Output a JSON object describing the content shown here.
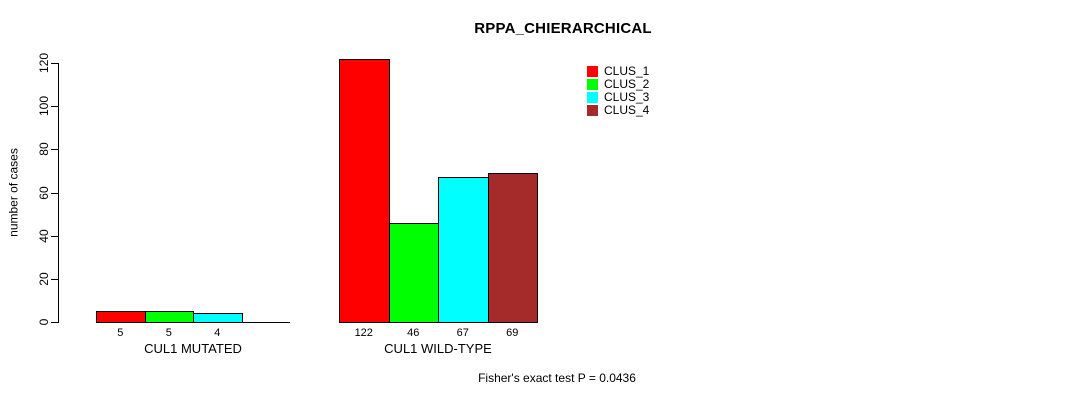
{
  "chart_data": {
    "type": "bar",
    "title": "RPPA_CHIERARCHICAL",
    "ylabel": "number of cases",
    "xlabel": "",
    "ylim": [
      0,
      120
    ],
    "yticks": [
      0,
      20,
      40,
      60,
      80,
      100,
      120
    ],
    "grid": false,
    "legend_position": "top-right-inside",
    "series": [
      {
        "name": "CLUS_1",
        "color": "#FF0000"
      },
      {
        "name": "CLUS_2",
        "color": "#00FF00"
      },
      {
        "name": "CLUS_3",
        "color": "#00FFFF"
      },
      {
        "name": "CLUS_4",
        "color": "#A52A2A"
      }
    ],
    "groups": [
      {
        "label": "CUL1 MUTATED",
        "values": [
          5,
          5,
          4,
          0
        ],
        "bar_labels": [
          "5",
          "5",
          "4",
          ""
        ]
      },
      {
        "label": "CUL1 WILD-TYPE",
        "values": [
          122,
          46,
          67,
          69
        ],
        "bar_labels": [
          "122",
          "46",
          "67",
          "69"
        ]
      }
    ],
    "annotation": "Fisher's exact test P = 0.0436"
  }
}
